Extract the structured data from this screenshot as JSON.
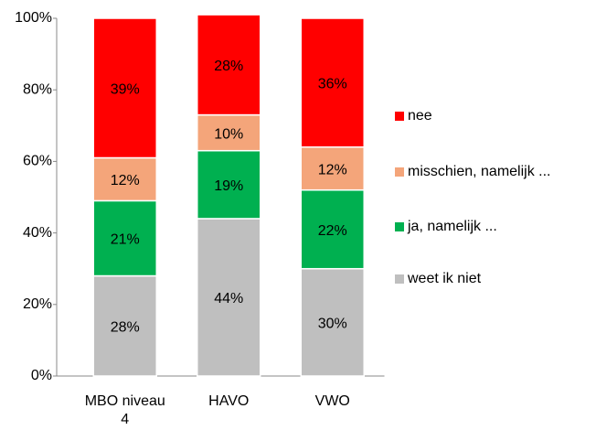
{
  "chart_data": {
    "type": "stacked_bar",
    "categories": [
      "MBO niveau 4",
      "HAVO",
      "VWO"
    ],
    "series": [
      {
        "name": "weet ik niet",
        "color": "#bfbfbf",
        "values": [
          28,
          44,
          30
        ],
        "value_labels": [
          "28%",
          "44%",
          "30%"
        ]
      },
      {
        "name": "ja, namelijk ...",
        "color": "#00b050",
        "values": [
          21,
          19,
          22
        ],
        "value_labels": [
          "21%",
          "19%",
          "22%"
        ]
      },
      {
        "name": "misschien, namelijk ...",
        "color": "#f4a57a",
        "values": [
          12,
          10,
          12
        ],
        "value_labels": [
          "12%",
          "10%",
          "12%"
        ]
      },
      {
        "name": "nee",
        "color": "#ff0000",
        "values": [
          39,
          28,
          36
        ],
        "value_labels": [
          "39%",
          "28%",
          "36%"
        ]
      }
    ],
    "ylim": [
      0,
      100
    ],
    "yticks": [
      {
        "value": 0,
        "label": "0%"
      },
      {
        "value": 20,
        "label": "20%"
      },
      {
        "value": 40,
        "label": "40%"
      },
      {
        "value": 60,
        "label": "60%"
      },
      {
        "value": 80,
        "label": "80%"
      },
      {
        "value": 100,
        "label": "100%"
      }
    ],
    "legend": "right"
  }
}
